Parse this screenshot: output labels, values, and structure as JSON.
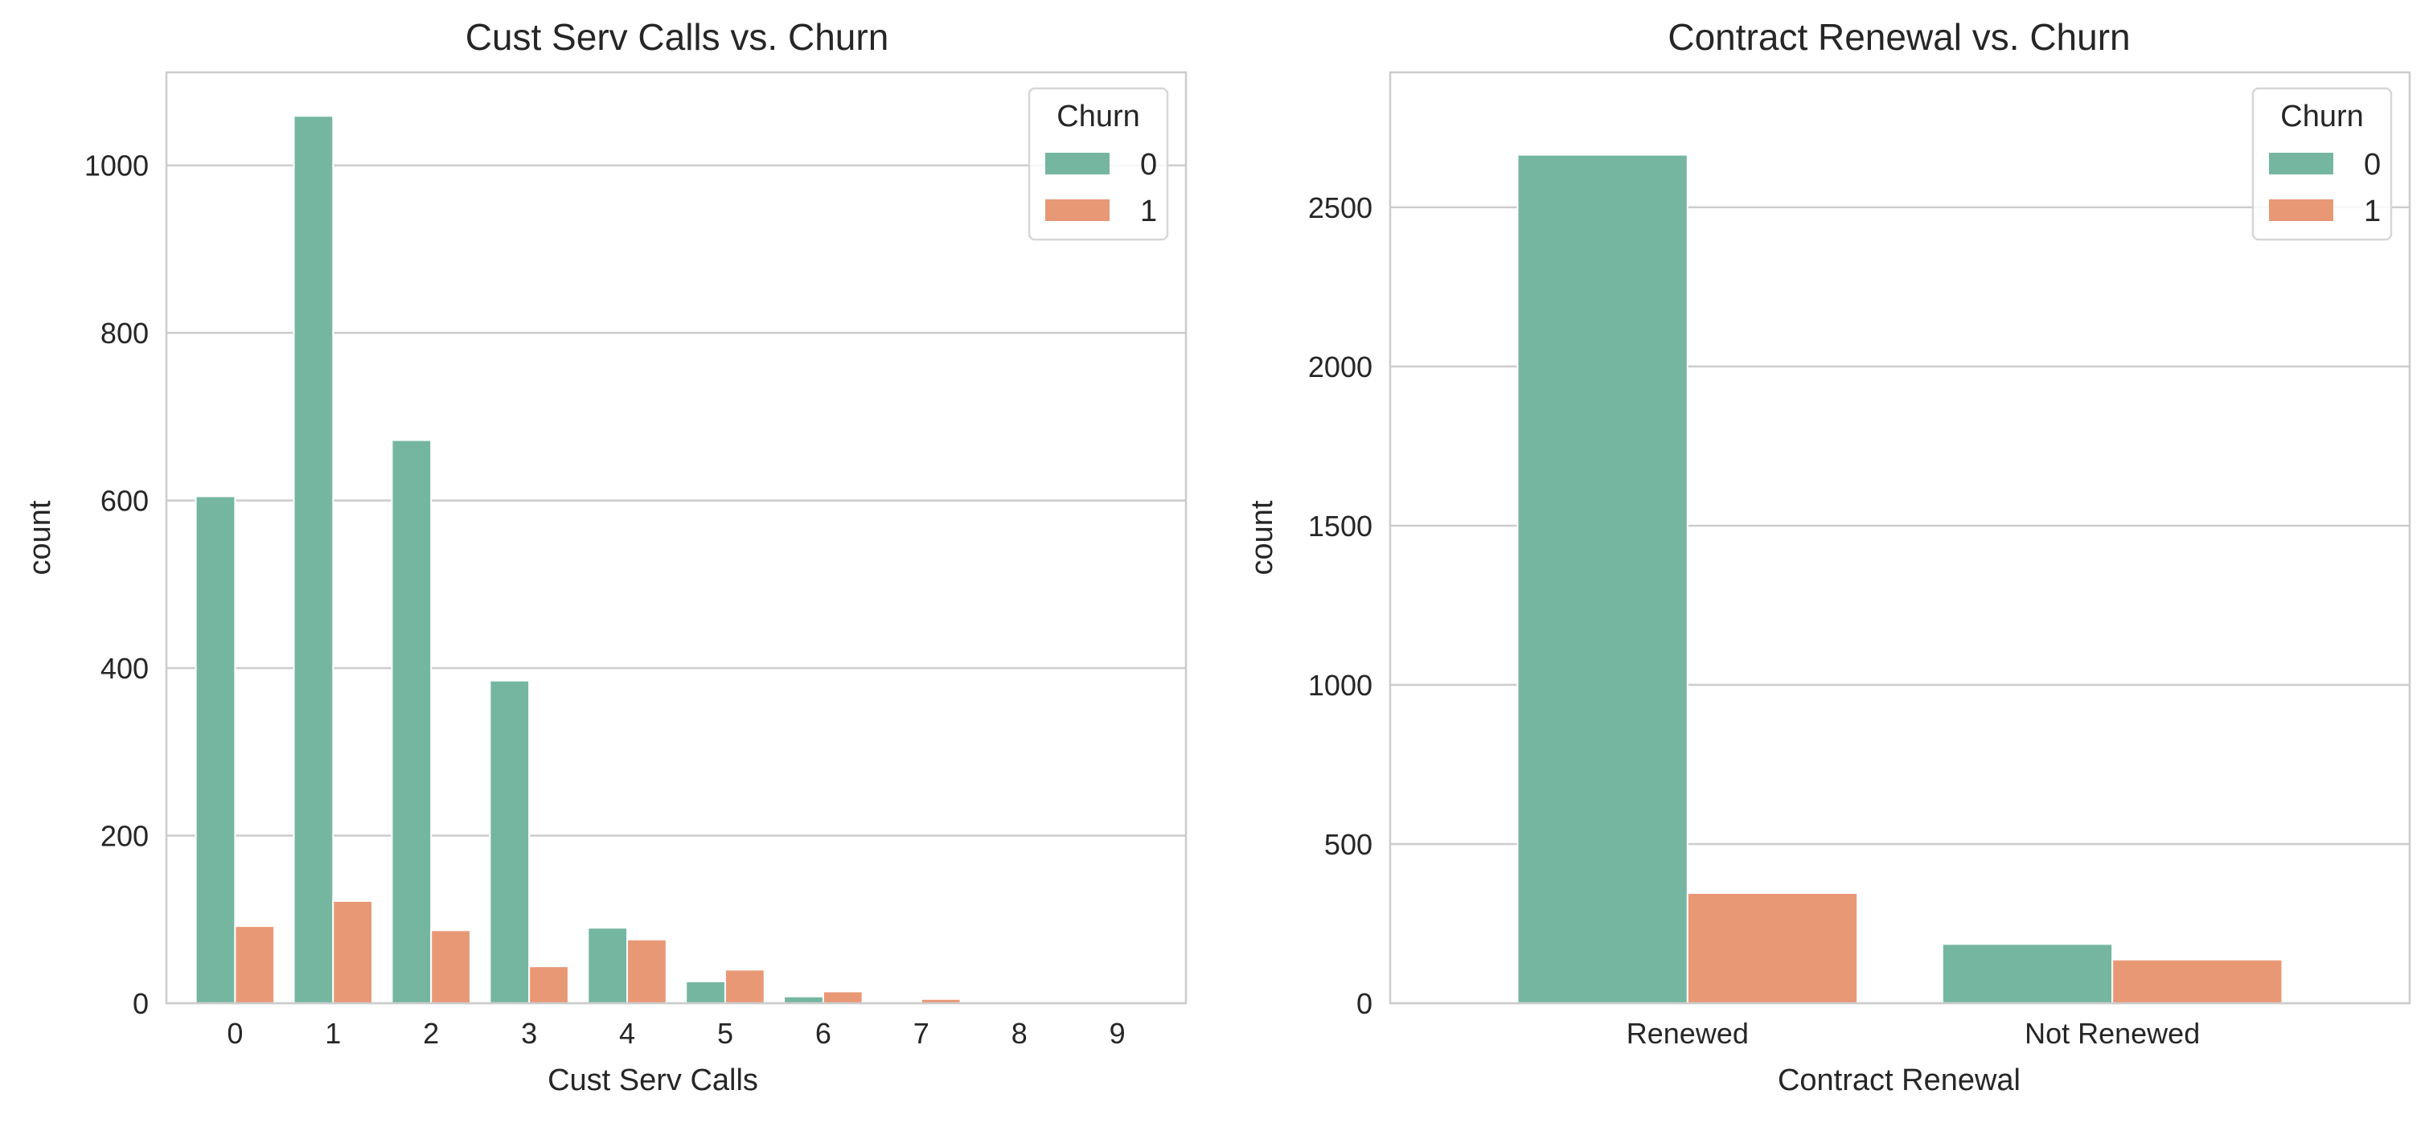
{
  "chart_data": [
    {
      "type": "bar",
      "title": "Cust Serv Calls vs. Churn",
      "xlabel": "Cust Serv Calls",
      "ylabel": "count",
      "categories": [
        "0",
        "1",
        "2",
        "3",
        "4",
        "5",
        "6",
        "7",
        "8",
        "9"
      ],
      "series": [
        {
          "name": "0",
          "color": "#75b6a1",
          "values": [
            605,
            1059,
            672,
            385,
            90,
            26,
            8,
            0,
            1,
            0
          ]
        },
        {
          "name": "1",
          "color": "#e99876",
          "values": [
            92,
            122,
            87,
            44,
            76,
            40,
            14,
            5,
            1,
            2
          ]
        }
      ],
      "ylim": [
        0,
        1111
      ],
      "yticks": [
        0,
        200,
        400,
        600,
        800,
        1000
      ],
      "legend": {
        "title": "Churn",
        "placement": "top-right"
      },
      "grid": "horizontal"
    },
    {
      "type": "bar",
      "title": "Contract Renewal vs. Churn",
      "xlabel": "Contract Renewal",
      "ylabel": "count",
      "categories": [
        "Renewed",
        "Not Renewed"
      ],
      "series": [
        {
          "name": "0",
          "color": "#75b6a1",
          "values": [
            2665,
            186
          ]
        },
        {
          "name": "1",
          "color": "#e99876",
          "values": [
            346,
            137
          ]
        }
      ],
      "ylim": [
        0,
        2924
      ],
      "yticks": [
        0,
        500,
        1000,
        1500,
        2000,
        2500
      ],
      "legend": {
        "title": "Churn",
        "placement": "top-right"
      },
      "grid": "horizontal"
    }
  ]
}
